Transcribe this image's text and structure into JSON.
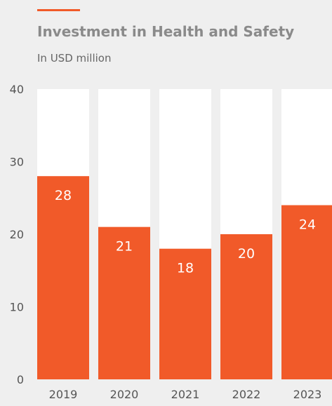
{
  "header": {
    "title": "Investment in Health and Safety",
    "subtitle": "In USD million"
  },
  "colors": {
    "background": "#efefef",
    "accent": "#f15a29",
    "bar": "#f15a29",
    "bar_track": "#ffffff",
    "title_text": "#8a8a8a",
    "axis_text": "#555555",
    "value_text": "#ffffff"
  },
  "chart_data": {
    "type": "bar",
    "title": "Investment in Health and Safety",
    "subtitle": "In USD million",
    "xlabel": "",
    "ylabel": "",
    "categories": [
      "2019",
      "2020",
      "2021",
      "2022",
      "2023"
    ],
    "values": [
      28,
      21,
      18,
      20,
      24
    ],
    "ylim": [
      0,
      40
    ],
    "yticks": [
      0,
      10,
      20,
      30,
      40
    ],
    "grid": false,
    "legend": "none",
    "data_labels": true
  }
}
